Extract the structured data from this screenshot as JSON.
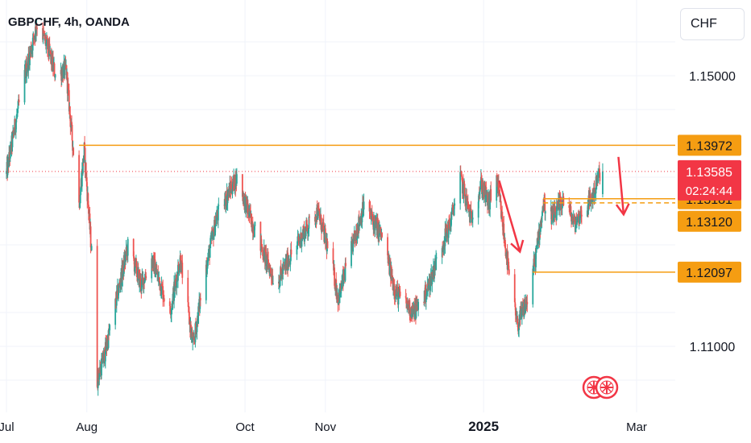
{
  "header": {
    "title": "GBPCHF, 4h, OANDA",
    "currency": "CHF"
  },
  "colors": {
    "up": "#26a69a",
    "down": "#ef5350",
    "level": "#f59d12",
    "current": "#f23645",
    "arrow": "#f23645",
    "grid": "#f0f3fa",
    "text": "#131722"
  },
  "logo": {
    "icon": "union-jack-swiss-flags-icon"
  },
  "chart_data": {
    "type": "candlestick",
    "title": "GBPCHF, 4h, OANDA",
    "x_ticks": [
      {
        "label": "Jul",
        "date": "2024-07-01"
      },
      {
        "label": "Aug",
        "date": "2024-08-01"
      },
      {
        "label": "Oct",
        "date": "2024-10-01"
      },
      {
        "label": "Nov",
        "date": "2024-11-01"
      },
      {
        "label": "2025",
        "date": "2025-01-01",
        "bold": true
      },
      {
        "label": "Mar",
        "date": "2025-03-01"
      }
    ],
    "y_ticks": [
      "1.15000",
      "1.11000"
    ],
    "y_range": [
      1.105,
      1.16
    ],
    "x_range": [
      "2024-07-01",
      "2025-03-10"
    ],
    "current_price": {
      "value": "1.13585",
      "countdown": "02:24:44"
    },
    "levels": [
      {
        "value": "1.13972",
        "from": "2024-07-29"
      },
      {
        "value": "1.13181",
        "from": "2025-01-24"
      },
      {
        "value": "1.13120",
        "from": "2025-01-24",
        "dashed": true
      },
      {
        "value": "1.12097",
        "from": "2025-01-20"
      }
    ],
    "arrows": [
      {
        "from": [
          "2025-01-07",
          1.1345
        ],
        "to": [
          "2025-01-15",
          1.124
        ]
      },
      {
        "from": [
          "2025-02-22",
          1.138
        ],
        "to": [
          "2025-02-24",
          1.1295
        ]
      }
    ],
    "path_anchors": [
      [
        "2024-07-01",
        1.1355
      ],
      [
        "2024-07-04",
        1.142
      ],
      [
        "2024-07-08",
        1.15
      ],
      [
        "2024-07-13",
        1.158
      ],
      [
        "2024-07-17",
        1.154
      ],
      [
        "2024-07-20",
        1.15
      ],
      [
        "2024-07-24",
        1.151
      ],
      [
        "2024-07-26",
        1.142
      ],
      [
        "2024-07-29",
        1.131
      ],
      [
        "2024-07-31",
        1.139
      ],
      [
        "2024-08-03",
        1.123
      ],
      [
        "2024-08-05",
        1.105
      ],
      [
        "2024-08-08",
        1.109
      ],
      [
        "2024-08-13",
        1.118
      ],
      [
        "2024-08-17",
        1.125
      ],
      [
        "2024-08-22",
        1.119
      ],
      [
        "2024-08-26",
        1.123
      ],
      [
        "2024-09-02",
        1.115
      ],
      [
        "2024-09-06",
        1.123
      ],
      [
        "2024-09-11",
        1.11
      ],
      [
        "2024-09-15",
        1.12
      ],
      [
        "2024-09-20",
        1.129
      ],
      [
        "2024-09-25",
        1.133
      ],
      [
        "2024-09-28",
        1.135
      ],
      [
        "2024-10-03",
        1.129
      ],
      [
        "2024-10-08",
        1.124
      ],
      [
        "2024-10-13",
        1.119
      ],
      [
        "2024-10-18",
        1.123
      ],
      [
        "2024-10-24",
        1.127
      ],
      [
        "2024-10-29",
        1.13
      ],
      [
        "2024-11-03",
        1.123
      ],
      [
        "2024-11-06",
        1.117
      ],
      [
        "2024-11-10",
        1.123
      ],
      [
        "2024-11-16",
        1.131
      ],
      [
        "2024-11-23",
        1.126
      ],
      [
        "2024-11-28",
        1.118
      ],
      [
        "2024-12-05",
        1.115
      ],
      [
        "2024-12-10",
        1.118
      ],
      [
        "2024-12-15",
        1.124
      ],
      [
        "2024-12-19",
        1.128
      ],
      [
        "2024-12-23",
        1.135
      ],
      [
        "2024-12-27",
        1.129
      ],
      [
        "2024-12-31",
        1.134
      ],
      [
        "2025-01-03",
        1.131
      ],
      [
        "2025-01-06",
        1.135
      ],
      [
        "2025-01-08",
        1.129
      ],
      [
        "2025-01-11",
        1.12
      ],
      [
        "2025-01-14",
        1.113
      ],
      [
        "2025-01-18",
        1.117
      ],
      [
        "2025-01-21",
        1.123
      ],
      [
        "2025-01-24",
        1.131
      ],
      [
        "2025-01-28",
        1.129
      ],
      [
        "2025-02-01",
        1.132
      ],
      [
        "2025-02-05",
        1.128
      ],
      [
        "2025-02-08",
        1.13
      ],
      [
        "2025-02-12",
        1.132
      ],
      [
        "2025-02-15",
        1.136
      ]
    ],
    "current_countdown_label": "02:24:44"
  }
}
